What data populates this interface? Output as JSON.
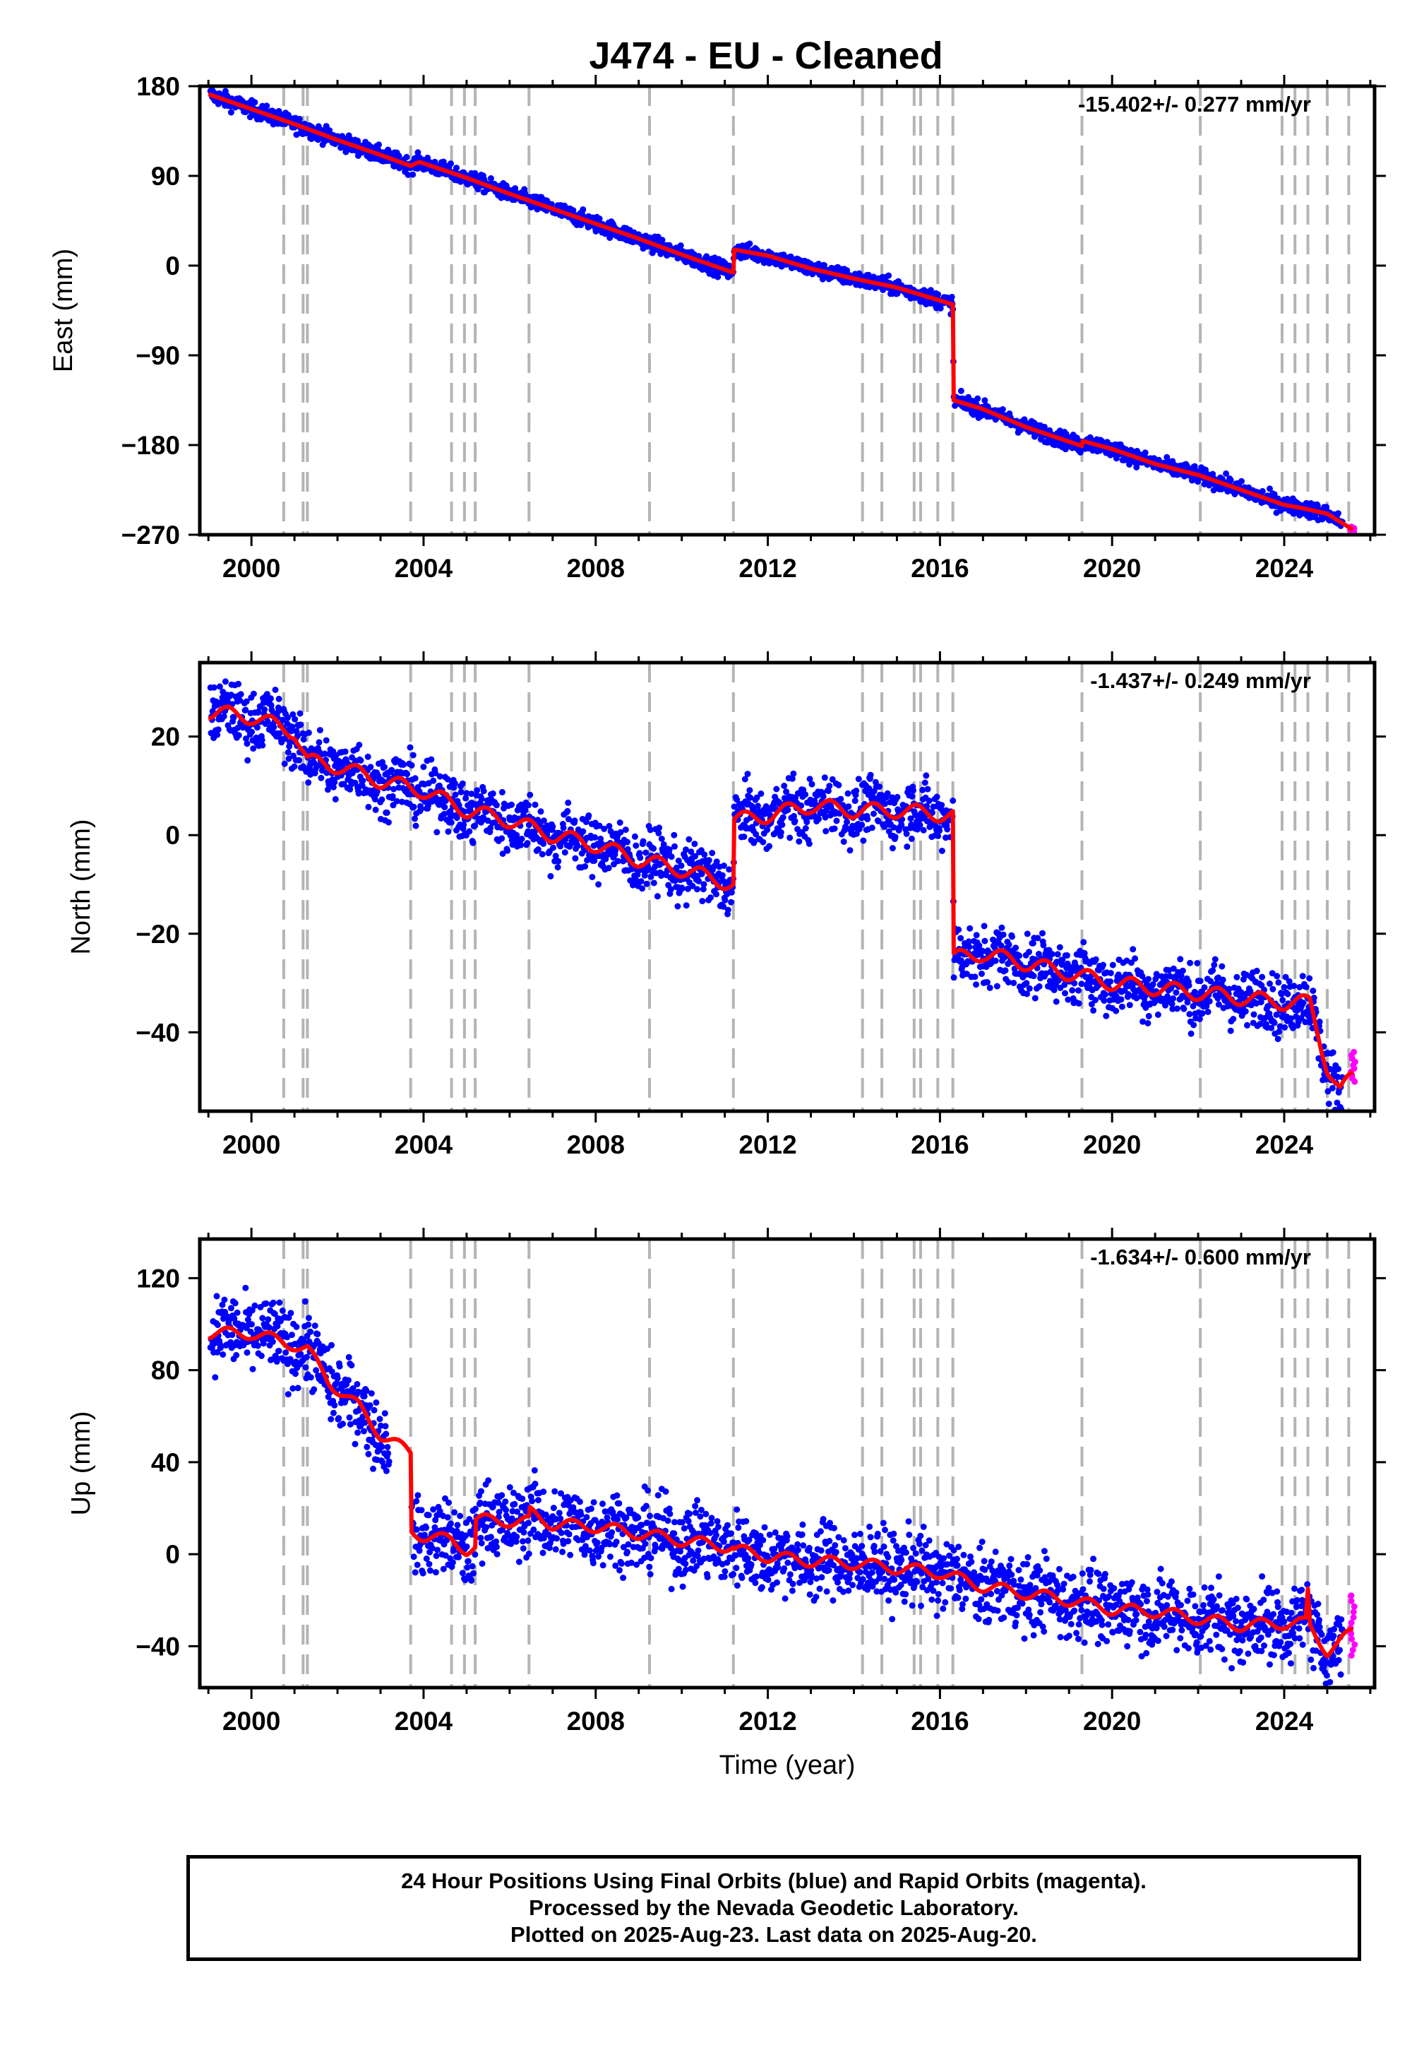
{
  "title": "J474  - EU - Cleaned",
  "footer": {
    "line1": "24 Hour Positions Using Final Orbits (blue) and Rapid Orbits (magenta).",
    "line2": "Processed by the Nevada Geodetic Laboratory.",
    "line3": "Plotted on 2025-Aug-23. Last data on 2025-Aug-20."
  },
  "colors": {
    "final_orbits": "#0000ff",
    "rapid_orbits": "#ff00ff",
    "model": "#ff0000",
    "event_lines": "#b4b4b4"
  },
  "chart_data": [
    {
      "type": "scatter",
      "name": "east",
      "ylabel": "East (mm)",
      "xlabel": "",
      "rate_text": "-15.402+/- 0.277 mm/yr",
      "xlim": [
        1998.8,
        2026.1
      ],
      "ylim": [
        -270,
        180
      ],
      "xticks": [
        2000,
        2004,
        2008,
        2012,
        2016,
        2020,
        2024
      ],
      "yticks": [
        180,
        90,
        0,
        -90,
        -180,
        -270
      ],
      "ytick_labels": [
        "180",
        "90",
        "0",
        "−90",
        "−180",
        "−270"
      ],
      "grid": false,
      "event_lines": [
        2000.75,
        2001.2,
        2001.3,
        2003.7,
        2004.65,
        2004.95,
        2005.2,
        2006.45,
        2009.25,
        2011.2,
        2014.2,
        2014.65,
        2015.4,
        2015.55,
        2015.95,
        2016.3,
        2019.3,
        2022.05,
        2023.95,
        2024.25,
        2024.55,
        2025.0,
        2025.5
      ],
      "series": [
        {
          "name": "model",
          "points": [
            [
              1999.0,
              172
            ],
            [
              1999.4,
              166
            ],
            [
              2000.0,
              157
            ],
            [
              2001.0,
              142
            ],
            [
              2002.0,
              126
            ],
            [
              2003.0,
              111
            ],
            [
              2003.7,
              100
            ],
            [
              2003.9,
              104
            ],
            [
              2005.0,
              88
            ],
            [
              2006.0,
              72
            ],
            [
              2007.0,
              57
            ],
            [
              2008.0,
              42
            ],
            [
              2009.0,
              27
            ],
            [
              2010.0,
              11
            ],
            [
              2011.2,
              -7
            ],
            [
              2011.22,
              16
            ],
            [
              2012.0,
              10
            ],
            [
              2013.0,
              -3
            ],
            [
              2014.0,
              -13
            ],
            [
              2015.0,
              -22
            ],
            [
              2016.0,
              -35
            ],
            [
              2016.3,
              -39
            ],
            [
              2016.32,
              -135
            ],
            [
              2017.0,
              -144
            ],
            [
              2018.0,
              -162
            ],
            [
              2019.3,
              -181
            ],
            [
              2019.32,
              -176
            ],
            [
              2020.0,
              -184
            ],
            [
              2021.0,
              -199
            ],
            [
              2022.0,
              -210
            ],
            [
              2023.0,
              -225
            ],
            [
              2024.0,
              -240
            ],
            [
              2024.5,
              -244
            ],
            [
              2025.0,
              -249
            ],
            [
              2025.6,
              -265
            ]
          ]
        }
      ],
      "scatter_noise": 4,
      "rapid": {
        "x": [
          2025.35,
          2025.65
        ],
        "y": [
          -262,
          -268
        ],
        "count": 10
      }
    },
    {
      "type": "scatter",
      "name": "north",
      "ylabel": "North (mm)",
      "xlabel": "",
      "rate_text": "-1.437+/- 0.249 mm/yr",
      "xlim": [
        1998.8,
        2026.1
      ],
      "ylim": [
        -56,
        35
      ],
      "xticks": [
        2000,
        2004,
        2008,
        2012,
        2016,
        2020,
        2024
      ],
      "yticks": [
        20,
        0,
        -20,
        -40
      ],
      "ytick_labels": [
        "20",
        "0",
        "−20",
        "−40"
      ],
      "grid": false,
      "event_lines": [
        2000.75,
        2001.2,
        2001.3,
        2003.7,
        2004.65,
        2004.95,
        2005.2,
        2006.45,
        2009.25,
        2011.2,
        2014.2,
        2014.65,
        2015.4,
        2015.55,
        2015.95,
        2016.3,
        2019.3,
        2022.05,
        2023.95,
        2024.25,
        2024.55,
        2025.0,
        2025.5
      ],
      "series": [
        {
          "name": "model",
          "points": [
            [
              1999.0,
              25
            ],
            [
              2000.0,
              24
            ],
            [
              2001.0,
              21
            ],
            [
              2001.3,
              15
            ],
            [
              2002.0,
              14
            ],
            [
              2003.0,
              11
            ],
            [
              2004.0,
              9
            ],
            [
              2005.0,
              5
            ],
            [
              2006.0,
              3
            ],
            [
              2007.0,
              0
            ],
            [
              2008.0,
              -2
            ],
            [
              2009.0,
              -5
            ],
            [
              2010.0,
              -7
            ],
            [
              2011.2,
              -10
            ],
            [
              2011.22,
              3
            ],
            [
              2012.0,
              4
            ],
            [
              2013.0,
              6
            ],
            [
              2014.0,
              5
            ],
            [
              2015.0,
              5
            ],
            [
              2016.3,
              4
            ],
            [
              2016.32,
              -25
            ],
            [
              2017.0,
              -24
            ],
            [
              2018.0,
              -26
            ],
            [
              2019.0,
              -28
            ],
            [
              2020.0,
              -30
            ],
            [
              2021.0,
              -31
            ],
            [
              2022.0,
              -32
            ],
            [
              2023.0,
              -33
            ],
            [
              2024.0,
              -34
            ],
            [
              2024.6,
              -34
            ],
            [
              2025.0,
              -47
            ],
            [
              2025.3,
              -52
            ],
            [
              2025.6,
              -49
            ]
          ]
        }
      ],
      "seasonal_amplitude": 3,
      "scatter_noise": 3,
      "rapid": {
        "x": [
          2025.35,
          2025.65
        ],
        "y": [
          -50,
          -44
        ],
        "count": 10
      }
    },
    {
      "type": "scatter",
      "name": "up",
      "ylabel": "Up (mm)",
      "xlabel": "Time (year)",
      "rate_text": "-1.634+/- 0.600 mm/yr",
      "xlim": [
        1998.8,
        2026.1
      ],
      "ylim": [
        -58,
        137
      ],
      "xticks": [
        2000,
        2004,
        2008,
        2012,
        2016,
        2020,
        2024
      ],
      "yticks": [
        120,
        80,
        40,
        0,
        -40
      ],
      "ytick_labels": [
        "120",
        "80",
        "40",
        "0",
        "−40"
      ],
      "grid": false,
      "event_lines": [
        2000.75,
        2001.2,
        2001.3,
        2003.7,
        2004.65,
        2004.95,
        2005.2,
        2006.45,
        2009.25,
        2011.2,
        2014.2,
        2014.65,
        2015.4,
        2015.55,
        2015.95,
        2016.3,
        2019.3,
        2022.05,
        2023.95,
        2024.25,
        2024.55,
        2025.0,
        2025.5
      ],
      "series": [
        {
          "name": "model",
          "points": [
            [
              1999.0,
              96
            ],
            [
              2000.0,
              96
            ],
            [
              2001.0,
              91
            ],
            [
              2001.3,
              89
            ],
            [
              2001.8,
              75
            ],
            [
              2002.5,
              64
            ],
            [
              2003.0,
              52
            ],
            [
              2003.7,
              44
            ],
            [
              2003.72,
              10
            ],
            [
              2004.0,
              8
            ],
            [
              2004.65,
              6
            ],
            [
              2005.0,
              2
            ],
            [
              2005.2,
              3
            ],
            [
              2005.22,
              15
            ],
            [
              2006.45,
              14
            ],
            [
              2006.47,
              18
            ],
            [
              2007.0,
              13
            ],
            [
              2008.0,
              12
            ],
            [
              2009.0,
              9
            ],
            [
              2010.0,
              6
            ],
            [
              2011.2,
              3
            ],
            [
              2011.22,
              2
            ],
            [
              2012.0,
              -1
            ],
            [
              2013.0,
              -3
            ],
            [
              2014.0,
              -4
            ],
            [
              2015.0,
              -6
            ],
            [
              2016.0,
              -8
            ],
            [
              2017.0,
              -14
            ],
            [
              2018.0,
              -17
            ],
            [
              2019.0,
              -20
            ],
            [
              2020.0,
              -24
            ],
            [
              2021.0,
              -25
            ],
            [
              2022.0,
              -28
            ],
            [
              2023.0,
              -31
            ],
            [
              2024.0,
              -30
            ],
            [
              2024.5,
              -30
            ],
            [
              2024.55,
              -17
            ],
            [
              2024.6,
              -32
            ],
            [
              2025.0,
              -42
            ],
            [
              2025.6,
              -34
            ]
          ]
        }
      ],
      "seasonal_amplitude": 5,
      "scatter_noise": 8,
      "rapid": {
        "x": [
          2025.35,
          2025.65
        ],
        "y": [
          -44,
          -18
        ],
        "count": 12
      }
    }
  ]
}
